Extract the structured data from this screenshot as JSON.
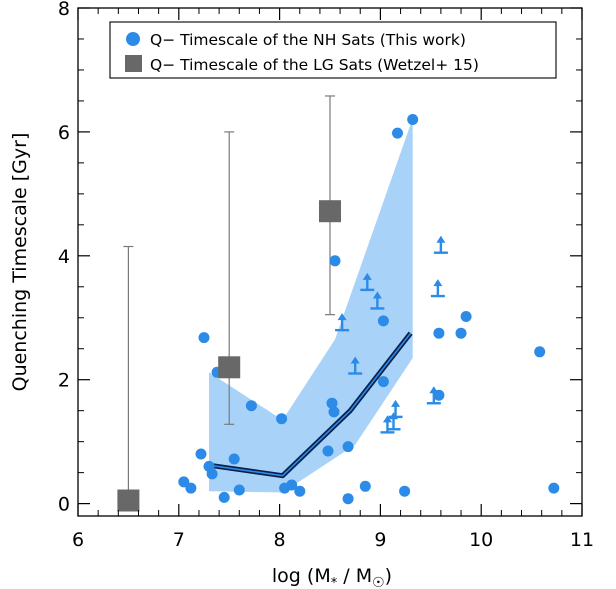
{
  "chart_data": {
    "type": "scatter",
    "xlabel": "log (M",
    "xlabel_sub": "*",
    "xlabel_mid": " / M",
    "xlabel_end": ")",
    "ylabel": "Quenching Timescale [Gyr]",
    "xlim": [
      6,
      11
    ],
    "ylim": [
      -0.2,
      8
    ],
    "x_ticks": [
      6,
      7,
      8,
      9,
      10,
      11
    ],
    "y_ticks": [
      0,
      2,
      4,
      6,
      8
    ],
    "legend_position": "top-center",
    "legend": [
      {
        "label": "Q− Timescale of the NH Sats (This work)",
        "marker": "circle",
        "color": "#2b8be6"
      },
      {
        "label": "Q− Timescale of the LG Sats (Wetzel+ 15)",
        "marker": "square",
        "color": "#686868"
      }
    ],
    "colors": {
      "nh": "#2b8be6",
      "lg": "#686868",
      "band": "#a9d2f8",
      "line": "#0a1f4a"
    },
    "nh_points": [
      [
        7.05,
        0.35
      ],
      [
        7.12,
        0.25
      ],
      [
        7.22,
        0.8
      ],
      [
        7.25,
        2.68
      ],
      [
        7.3,
        0.6
      ],
      [
        7.33,
        0.48
      ],
      [
        7.38,
        2.12
      ],
      [
        7.45,
        0.1
      ],
      [
        7.55,
        0.72
      ],
      [
        7.6,
        0.22
      ],
      [
        7.72,
        1.58
      ],
      [
        8.02,
        1.37
      ],
      [
        8.05,
        0.25
      ],
      [
        8.12,
        0.3
      ],
      [
        8.2,
        0.2
      ],
      [
        8.48,
        0.85
      ],
      [
        8.52,
        1.62
      ],
      [
        8.54,
        1.48
      ],
      [
        8.55,
        3.92
      ],
      [
        8.68,
        0.92
      ],
      [
        8.68,
        0.08
      ],
      [
        8.85,
        0.28
      ],
      [
        9.03,
        2.95
      ],
      [
        9.03,
        1.97
      ],
      [
        9.17,
        5.98
      ],
      [
        9.24,
        0.2
      ],
      [
        9.32,
        6.2
      ],
      [
        9.58,
        2.75
      ],
      [
        9.58,
        1.75
      ],
      [
        9.8,
        2.75
      ],
      [
        9.85,
        3.02
      ],
      [
        10.58,
        2.45
      ],
      [
        10.72,
        0.25
      ]
    ],
    "nh_lower_limits": [
      [
        8.62,
        2.8
      ],
      [
        8.75,
        2.1
      ],
      [
        8.87,
        3.45
      ],
      [
        8.97,
        3.15
      ],
      [
        9.07,
        1.15
      ],
      [
        9.13,
        1.2
      ],
      [
        9.15,
        1.4
      ],
      [
        9.53,
        1.62
      ],
      [
        9.57,
        3.35
      ],
      [
        9.6,
        4.05
      ]
    ],
    "lg_points": [
      {
        "x": 6.5,
        "y": 0.05,
        "y_err_low": 0.05,
        "y_err_high": 4.15
      },
      {
        "x": 7.5,
        "y": 2.2,
        "y_err_low": 1.28,
        "y_err_high": 6.0
      },
      {
        "x": 8.5,
        "y": 4.72,
        "y_err_low": 3.05,
        "y_err_high": 6.58
      }
    ],
    "median_line": {
      "x": [
        7.3,
        8.03,
        8.7,
        9.3
      ],
      "y": [
        0.62,
        0.45,
        1.5,
        2.75
      ]
    },
    "band": {
      "upper": [
        [
          7.3,
          2.12
        ],
        [
          8.03,
          1.35
        ],
        [
          8.55,
          2.65
        ],
        [
          9.32,
          6.22
        ]
      ],
      "lower": [
        [
          9.32,
          2.35
        ],
        [
          8.75,
          0.95
        ],
        [
          8.03,
          0.18
        ],
        [
          7.3,
          0.2
        ]
      ]
    }
  }
}
